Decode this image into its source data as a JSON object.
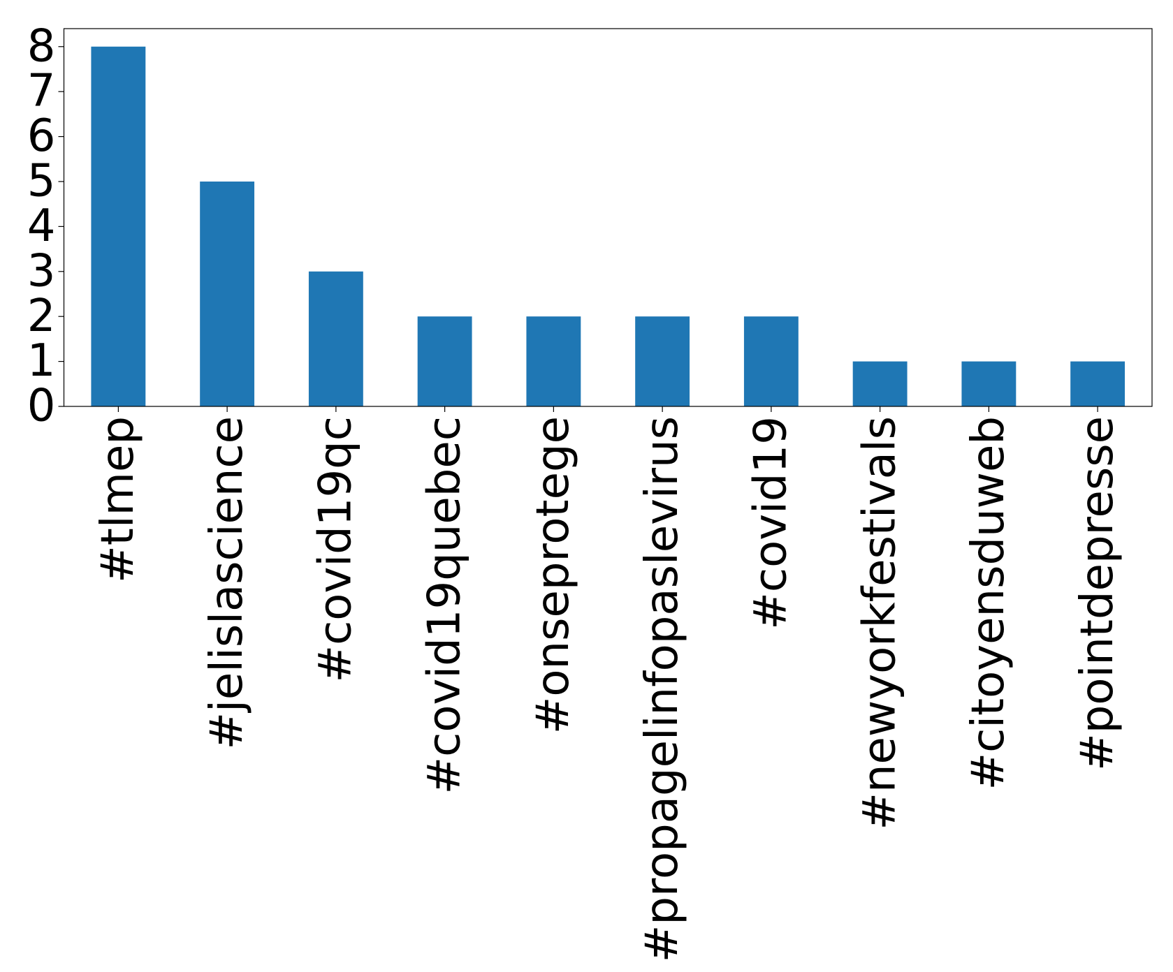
{
  "chart_data": {
    "type": "bar",
    "categories": [
      "#tlmep",
      "#jelislascience",
      "#covid19qc",
      "#covid19quebec",
      "#onseprotege",
      "#propagelinfopaslevirus",
      "#covid19",
      "#newyorkfestivals",
      "#citoyensduweb",
      "#pointdepresse"
    ],
    "values": [
      8,
      5,
      3,
      2,
      2,
      2,
      2,
      1,
      1,
      1
    ],
    "color": "#1f77b4",
    "ylim": [
      0,
      8.4
    ],
    "yticks": [
      0,
      1,
      2,
      3,
      4,
      5,
      6,
      7,
      8
    ],
    "grid": false
  }
}
